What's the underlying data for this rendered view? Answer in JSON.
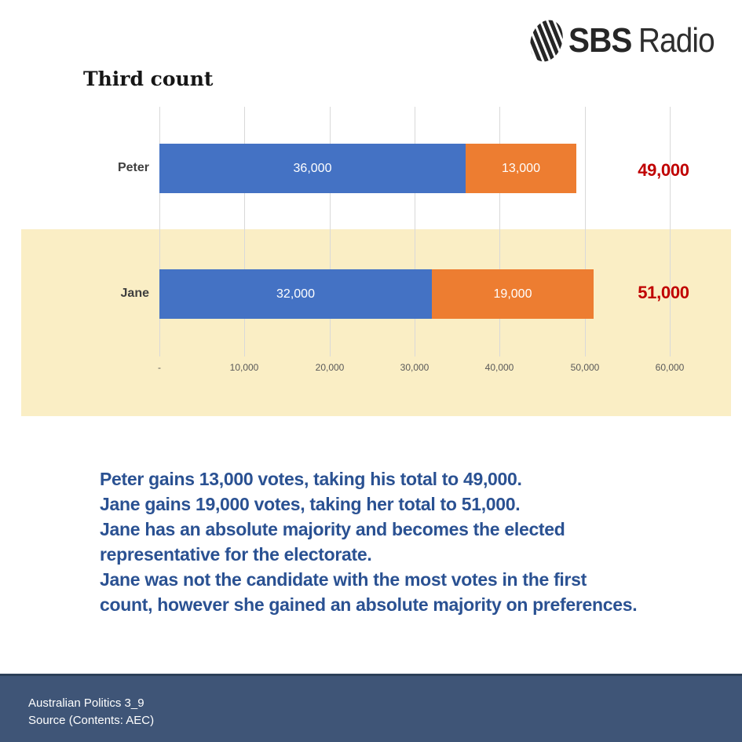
{
  "logo": {
    "brand": "SBS",
    "product": "Radio"
  },
  "title": "Third count",
  "chart_data": {
    "type": "bar",
    "orientation": "horizontal-stacked",
    "title": "Third count",
    "categories": [
      "Peter",
      "Jane"
    ],
    "series": [
      {
        "key": "blue",
        "color": "#4472C4",
        "values": [
          36000,
          32000
        ],
        "labels": [
          "36,000",
          "32,000"
        ]
      },
      {
        "key": "orange",
        "color": "#ED7D31",
        "values": [
          13000,
          19000
        ],
        "labels": [
          "13,000",
          "19,000"
        ]
      }
    ],
    "totals": {
      "values": [
        49000,
        51000
      ],
      "labels": [
        "49,000",
        "51,000"
      ],
      "color": "#C00000"
    },
    "x_ticks": [
      {
        "label": "-",
        "value": 0
      },
      {
        "label": "10,000",
        "value": 10000
      },
      {
        "label": "20,000",
        "value": 20000
      },
      {
        "label": "30,000",
        "value": 30000
      },
      {
        "label": "40,000",
        "value": 40000
      },
      {
        "label": "50,000",
        "value": 50000
      },
      {
        "label": "60,000",
        "value": 60000
      }
    ],
    "xlim": [
      0,
      60000
    ],
    "grid": "vertical",
    "legend": "none",
    "highlighted_category": "Jane",
    "highlight_color": "#FAEEC5"
  },
  "commentary": {
    "color": "#2A5192",
    "lines": [
      "Peter gains 13,000 votes, taking his total to 49,000.",
      "Jane gains 19,000 votes, taking her total to 51,000.",
      "Jane has an absolute majority and becomes the elected",
      "representative for the electorate.",
      "Jane was not the candidate with the most votes in the first",
      "count, however she gained an absolute majority on preferences."
    ]
  },
  "footer": {
    "background": "#3F5577",
    "line1": "Australian Politics 3_9",
    "line2": "Source (Contents: AEC)"
  }
}
